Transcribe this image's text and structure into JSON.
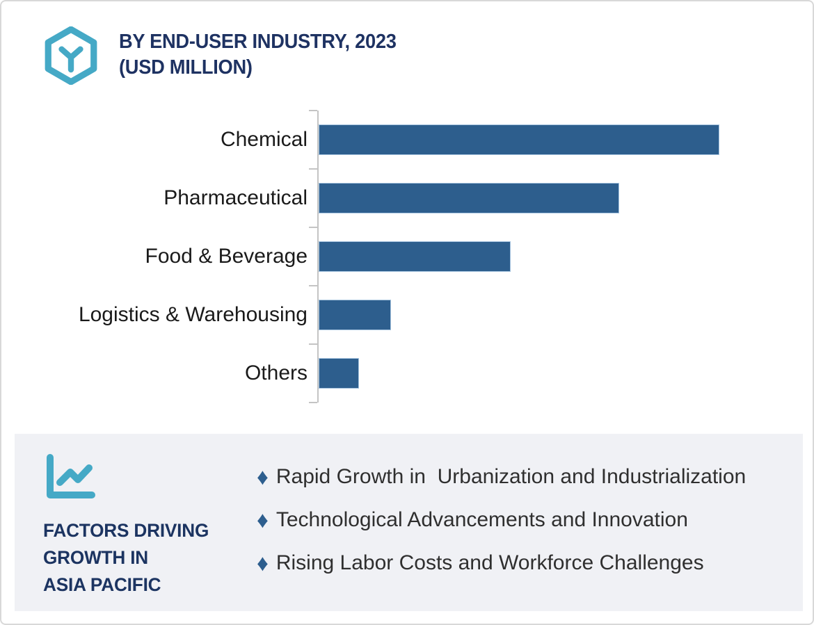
{
  "header": {
    "title": "BY END-USER INDUSTRY, 2023",
    "subtitle": "(USD MILLION)"
  },
  "icons": {
    "logo": "hexagon-y-logo-icon",
    "factors": "line-chart-icon",
    "bullet": "diamond-bullet-icon"
  },
  "chart_data": {
    "type": "bar",
    "orientation": "horizontal",
    "title": "BY END-USER INDUSTRY, 2023",
    "subtitle": "(USD MILLION)",
    "categories": [
      "Chemical",
      "Pharmaceutical",
      "Food & Beverage",
      "Logistics & Warehousing",
      "Others"
    ],
    "values_relative_pct": [
      100,
      75,
      48,
      18,
      10
    ],
    "value_axis_labels_shown": false,
    "data_labels_shown": false,
    "grid": false,
    "legend": false,
    "note": "No numeric axis ticks or data labels are visible; values are bar lengths relative to the longest bar (Chemical = 100)."
  },
  "factors_panel": {
    "heading_lines": [
      "FACTORS DRIVING",
      "GROWTH IN",
      "ASIA PACIFIC"
    ],
    "bullets": [
      "Rapid Growth in  Urbanization and Industrialization",
      "Technological Advancements and Innovation",
      "Rising Labor Costs and Workforce Challenges"
    ]
  },
  "colors": {
    "accent_teal": "#45a9c6",
    "title_navy": "#1e3262",
    "heading_navy": "#1c3461",
    "bar_blue": "#2d5e8d",
    "bar_border": "#a6c4df",
    "panel_bg": "#f0f1f5",
    "axis_gray": "#c4c4c4",
    "body_text": "#2f2f2f",
    "canvas_border": "#d8d8d8"
  }
}
